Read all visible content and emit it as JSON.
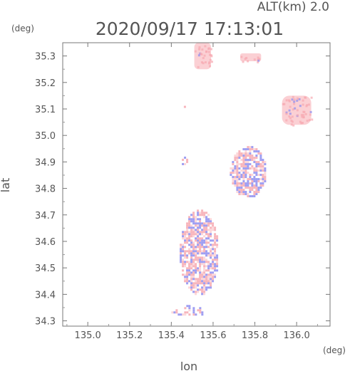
{
  "header": {
    "altitude_label": "ALT(km)  2.0",
    "timestamp": "2020/09/17 17:13:01"
  },
  "chart_data": {
    "type": "heatmap",
    "title": "2020/09/17 17:13:01",
    "xlabel": "lon",
    "ylabel": "lat",
    "x_unit": "(deg)",
    "y_unit": "(deg)",
    "xlim": [
      134.88,
      136.16
    ],
    "ylim": [
      34.28,
      35.35
    ],
    "x_ticks": [
      135.0,
      135.2,
      135.4,
      135.6,
      135.8,
      136.0
    ],
    "x_tick_labels": [
      "135.0",
      "135.2",
      "135.4",
      "135.6",
      "135.8",
      "136.0"
    ],
    "y_ticks": [
      34.3,
      34.4,
      34.5,
      34.6,
      34.7,
      34.8,
      34.9,
      35.0,
      35.1,
      35.2,
      35.3
    ],
    "y_tick_labels": [
      "34.3",
      "34.4",
      "34.5",
      "34.6",
      "34.7",
      "34.8",
      "34.9",
      "35.0",
      "35.1",
      "35.2",
      "35.3"
    ],
    "grid": false,
    "colors": {
      "positive": "#f6a8b0",
      "negative": "#8d8df0",
      "light_pink": "#fbd0d4"
    },
    "regions": [
      {
        "lon": [
          135.51,
          135.59
        ],
        "lat": [
          35.25,
          35.35
        ],
        "pattern": "solid_pink"
      },
      {
        "lon": [
          135.73,
          135.83
        ],
        "lat": [
          35.28,
          35.31
        ],
        "pattern": "solid_pink"
      },
      {
        "lon": [
          135.93,
          136.07
        ],
        "lat": [
          35.04,
          35.15
        ],
        "pattern": "solid_pink"
      },
      {
        "lon": [
          135.46,
          135.48
        ],
        "lat": [
          35.1,
          35.12
        ],
        "pattern": "mixed"
      },
      {
        "lon": [
          135.68,
          135.85
        ],
        "lat": [
          34.77,
          34.96
        ],
        "pattern": "mixed"
      },
      {
        "lon": [
          135.44,
          135.62
        ],
        "lat": [
          34.4,
          34.72
        ],
        "pattern": "mixed"
      },
      {
        "lon": [
          135.4,
          135.56
        ],
        "lat": [
          34.32,
          34.36
        ],
        "pattern": "sparse"
      },
      {
        "lon": [
          135.44,
          135.48
        ],
        "lat": [
          34.89,
          34.92
        ],
        "pattern": "mixed"
      }
    ]
  }
}
